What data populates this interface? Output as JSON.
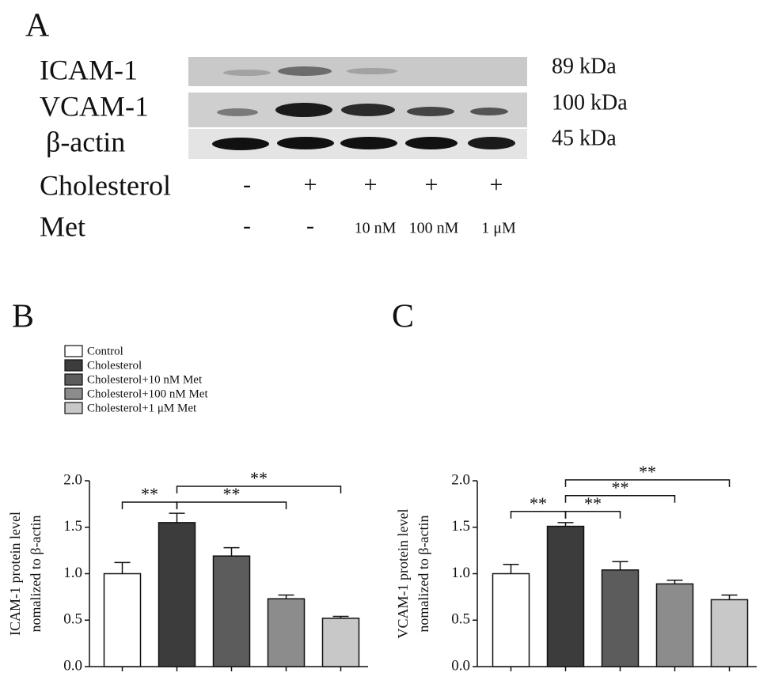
{
  "panel_a": {
    "label": "A",
    "blots": [
      {
        "protein": "ICAM-1",
        "size": "89 kDa"
      },
      {
        "protein": "VCAM-1",
        "size": "100 kDa"
      },
      {
        "protein": "β-actin",
        "size": "45 kDa"
      }
    ],
    "treatments": [
      {
        "name": "Cholesterol",
        "lanes": [
          "-",
          "+",
          "+",
          "+",
          "+"
        ]
      },
      {
        "name": "Met",
        "lanes": [
          "-",
          "-",
          "10 nM",
          "100 nM",
          "1 μM"
        ]
      }
    ]
  },
  "legend": {
    "entries": [
      {
        "label": "Control",
        "color": "#ffffff"
      },
      {
        "label": "Cholesterol",
        "color": "#3c3c3c"
      },
      {
        "label": "Cholesterol+10 nM Met",
        "color": "#5c5c5c"
      },
      {
        "label": "Cholesterol+100 nM Met",
        "color": "#8c8c8c"
      },
      {
        "label": "Cholesterol+1 μM Met",
        "color": "#c8c8c8"
      }
    ]
  },
  "chart_data": [
    {
      "type": "bar",
      "panel": "B",
      "ylabel": [
        "ICAM-1 protein level",
        "nomalized to β-actin"
      ],
      "values": [
        1.0,
        1.55,
        1.19,
        0.73,
        0.52
      ],
      "errors": [
        0.12,
        0.1,
        0.09,
        0.04,
        0.02
      ],
      "colors": [
        "#ffffff",
        "#3c3c3c",
        "#5c5c5c",
        "#8c8c8c",
        "#c8c8c8"
      ],
      "ylim": [
        0,
        2.0
      ],
      "yticks": [
        {
          "value": 0,
          "label": "0.0"
        },
        {
          "value": 0.5,
          "label": "0.5"
        },
        {
          "value": 1.0,
          "label": "1.0"
        },
        {
          "value": 1.5,
          "label": "1.5"
        },
        {
          "value": 2.0,
          "label": "2.0"
        }
      ],
      "annotations": [
        {
          "from": 0,
          "to": 1,
          "label": "**"
        },
        {
          "from": 1,
          "to": 3,
          "label": "**"
        },
        {
          "from": 1,
          "to": 4,
          "label": "**"
        }
      ]
    },
    {
      "type": "bar",
      "panel": "C",
      "ylabel": [
        "VCAM-1 protein level",
        "nomalized to β-actin"
      ],
      "values": [
        1.0,
        1.51,
        1.04,
        0.89,
        0.72
      ],
      "errors": [
        0.1,
        0.04,
        0.09,
        0.04,
        0.05
      ],
      "colors": [
        "#ffffff",
        "#3c3c3c",
        "#5c5c5c",
        "#8c8c8c",
        "#c8c8c8"
      ],
      "ylim": [
        0,
        2.0
      ],
      "yticks": [
        {
          "value": 0,
          "label": "0.0"
        },
        {
          "value": 0.5,
          "label": "0.5"
        },
        {
          "value": 1.0,
          "label": "1.0"
        },
        {
          "value": 1.5,
          "label": "1.5"
        },
        {
          "value": 2.0,
          "label": "2.0"
        }
      ],
      "annotations": [
        {
          "from": 0,
          "to": 1,
          "label": "**"
        },
        {
          "from": 1,
          "to": 2,
          "label": "**"
        },
        {
          "from": 1,
          "to": 3,
          "label": "**"
        },
        {
          "from": 1,
          "to": 4,
          "label": "**"
        }
      ]
    }
  ]
}
